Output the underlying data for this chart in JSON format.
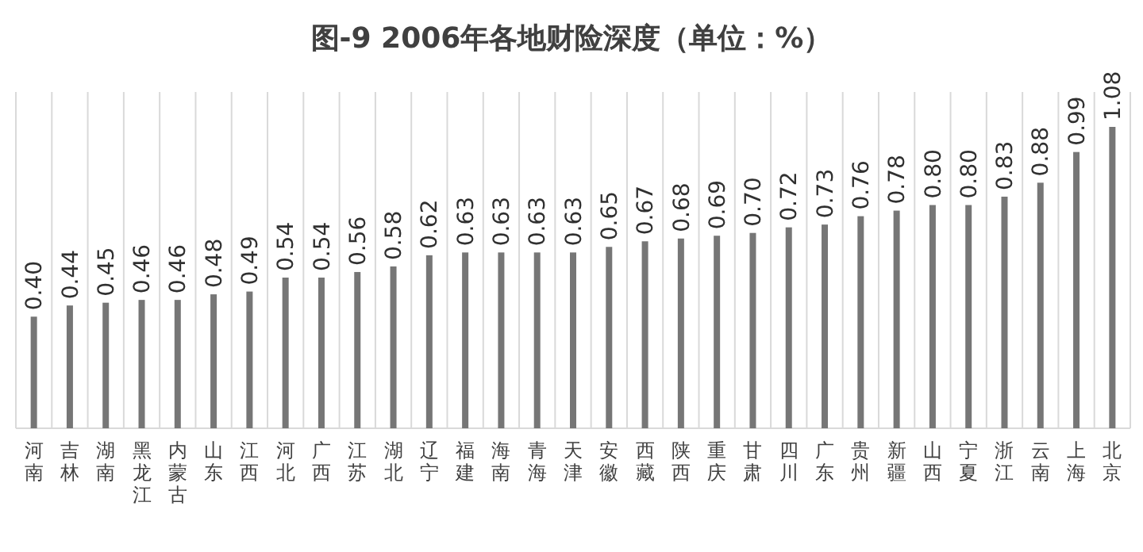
{
  "chart_data": {
    "type": "bar",
    "title": "图-9 2006年各地财险深度（单位：%）",
    "categories": [
      "河南",
      "吉林",
      "湖南",
      "黑龙江",
      "内蒙古",
      "山东",
      "江西",
      "河北",
      "广西",
      "江苏",
      "湖北",
      "辽宁",
      "福建",
      "海南",
      "青海",
      "天津",
      "安徽",
      "西藏",
      "陕西",
      "重庆",
      "甘肃",
      "四川",
      "广东",
      "贵州",
      "新疆",
      "山西",
      "宁夏",
      "浙江",
      "云南",
      "上海",
      "北京"
    ],
    "values": [
      0.4,
      0.44,
      0.45,
      0.46,
      0.46,
      0.48,
      0.49,
      0.54,
      0.54,
      0.56,
      0.58,
      0.62,
      0.63,
      0.63,
      0.63,
      0.63,
      0.65,
      0.67,
      0.68,
      0.69,
      0.7,
      0.72,
      0.73,
      0.76,
      0.78,
      0.8,
      0.8,
      0.83,
      0.88,
      0.99,
      1.08
    ],
    "value_labels": [
      "0.40",
      "0.44",
      "0.45",
      "0.46",
      "0.46",
      "0.48",
      "0.49",
      "0.54",
      "0.54",
      "0.56",
      "0.58",
      "0.62",
      "0.63",
      "0.63",
      "0.63",
      "0.63",
      "0.65",
      "0.67",
      "0.68",
      "0.69",
      "0.70",
      "0.72",
      "0.73",
      "0.76",
      "0.78",
      "0.80",
      "0.80",
      "0.83",
      "0.88",
      "0.99",
      "1.08"
    ],
    "color": "#767676",
    "grid": "x"
  }
}
